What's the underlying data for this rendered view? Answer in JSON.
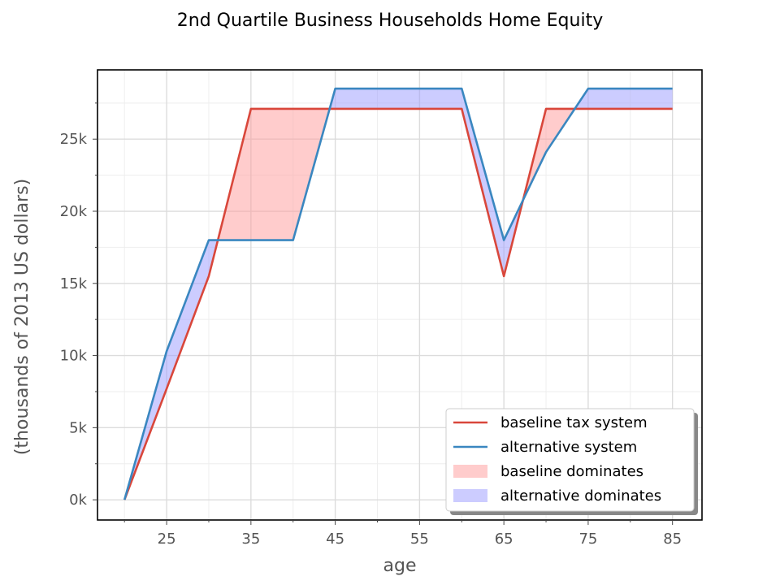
{
  "chart_data": {
    "type": "line",
    "title": "2nd Quartile Business Households Home Equity",
    "xlabel": "age",
    "ylabel": "(thousands of 2013 US dollars)",
    "x": [
      20,
      25,
      30,
      35,
      40,
      45,
      50,
      55,
      60,
      65,
      70,
      75,
      80,
      85
    ],
    "series": [
      {
        "name": "baseline tax system",
        "color": "#d9473b",
        "values": [
          0,
          7.7,
          15.5,
          27.1,
          27.1,
          27.1,
          27.1,
          27.1,
          27.1,
          15.5,
          27.1,
          27.1,
          27.1,
          27.1
        ]
      },
      {
        "name": "alternative system",
        "color": "#3a87c0",
        "values": [
          0,
          10.3,
          18.0,
          18.0,
          18.0,
          28.5,
          28.5,
          28.5,
          28.5,
          18.0,
          24.1,
          28.5,
          28.5,
          28.5
        ]
      }
    ],
    "fills": [
      {
        "name": "baseline dominates",
        "color": "#ff9999",
        "opacity": 0.5
      },
      {
        "name": "alternative dominates",
        "color": "#9999ff",
        "opacity": 0.5
      }
    ],
    "xticks": [
      25,
      35,
      45,
      55,
      65,
      75,
      85
    ],
    "xtick_labels": [
      "25",
      "35",
      "45",
      "55",
      "65",
      "75",
      "85"
    ],
    "yticks": [
      0,
      5,
      10,
      15,
      20,
      25
    ],
    "ytick_labels": [
      "0k",
      "5k",
      "10k",
      "15k",
      "20k",
      "25k"
    ],
    "xlim": [
      16.8,
      88.5
    ],
    "ylim": [
      -1.4,
      29.8
    ],
    "grid": true,
    "legend_position": "bottom-right"
  }
}
